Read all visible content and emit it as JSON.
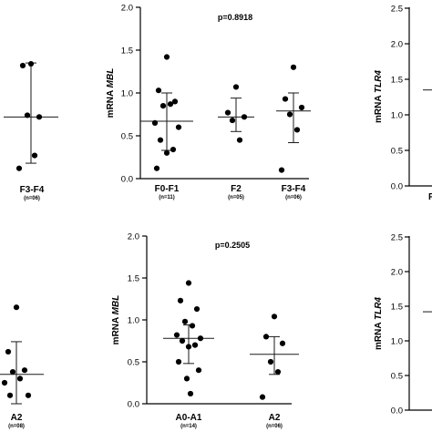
{
  "chart_data": [
    {
      "id": "panel-top-left",
      "type": "scatter",
      "title": "",
      "ylabel": "",
      "categories": [
        {
          "label": "F3-F4",
          "n": "(n=06)",
          "mean": 0.72,
          "sd_low": 0.18,
          "sd_high": 1.35,
          "points": [
            1.34,
            1.32,
            0.72,
            0.74,
            0.27,
            0.12
          ]
        }
      ]
    },
    {
      "id": "panel-top-middle",
      "type": "scatter",
      "title": "p=0.8918",
      "ylabel_prefix": "mRNA",
      "ylabel_gene": "MBL",
      "ylim": [
        0.0,
        2.0
      ],
      "yticks": [
        "0.0",
        "0.5",
        "1.0",
        "1.5",
        "2.0"
      ],
      "categories": [
        {
          "label": "F0-F1",
          "n": "(n=11)",
          "mean": 0.67,
          "sd_low": 0.33,
          "sd_high": 1.0,
          "points": [
            1.42,
            1.03,
            0.9,
            0.85,
            0.87,
            0.65,
            0.6,
            0.45,
            0.34,
            0.3,
            0.12
          ]
        },
        {
          "label": "F2",
          "n": "(n=05)",
          "mean": 0.72,
          "sd_low": 0.55,
          "sd_high": 0.94,
          "points": [
            1.07,
            0.77,
            0.72,
            0.68,
            0.45
          ]
        },
        {
          "label": "F3-F4",
          "n": "(n=06)",
          "mean": 0.79,
          "sd_low": 0.42,
          "sd_high": 1.0,
          "points": [
            1.3,
            0.93,
            0.83,
            0.75,
            0.57,
            0.1
          ]
        }
      ]
    },
    {
      "id": "panel-top-right",
      "type": "scatter",
      "title": "",
      "ylabel_prefix": "mRNA",
      "ylabel_gene": "TLR4",
      "yticks": [
        "0.0",
        "0.5",
        "1.0",
        "1.5",
        "2.0",
        "2.5"
      ],
      "categories": [
        {
          "label": "F",
          "n": "",
          "mean": 1.35,
          "points": []
        }
      ]
    },
    {
      "id": "panel-bottom-left",
      "type": "scatter",
      "title": "",
      "ylabel": "",
      "categories": [
        {
          "label": "A2",
          "n": "(n=08)",
          "mean": 0.35,
          "sd_low": 0.0,
          "sd_high": 0.74,
          "points": [
            1.15,
            0.62,
            0.4,
            0.38,
            0.3,
            0.25,
            0.1,
            0.1
          ]
        }
      ]
    },
    {
      "id": "panel-bottom-middle",
      "type": "scatter",
      "title": "p=0.2505",
      "ylabel_prefix": "mRNA",
      "ylabel_gene": "MBL",
      "ylim": [
        0.0,
        2.0
      ],
      "yticks": [
        "0.0",
        "0.5",
        "1.0",
        "1.5",
        "2.0"
      ],
      "categories": [
        {
          "label": "A0-A1",
          "n": "(n=14)",
          "mean": 0.78,
          "sd_low": 0.48,
          "sd_high": 0.94,
          "points": [
            1.44,
            1.23,
            1.13,
            0.98,
            0.93,
            0.82,
            0.78,
            0.75,
            0.7,
            0.68,
            0.5,
            0.4,
            0.3,
            0.12
          ]
        },
        {
          "label": "A2",
          "n": "(n=06)",
          "mean": 0.59,
          "sd_low": 0.35,
          "sd_high": 0.8,
          "points": [
            1.04,
            0.8,
            0.72,
            0.5,
            0.38,
            0.08
          ]
        }
      ]
    },
    {
      "id": "panel-bottom-right",
      "type": "scatter",
      "title": "",
      "ylabel_prefix": "mRNA",
      "ylabel_gene": "TLR4",
      "yticks": [
        "0.0",
        "0.5",
        "1.0",
        "1.5",
        "2.0",
        "2.5"
      ],
      "categories": [
        {
          "label": "",
          "n": "",
          "mean": 1.42,
          "points": []
        }
      ]
    }
  ]
}
